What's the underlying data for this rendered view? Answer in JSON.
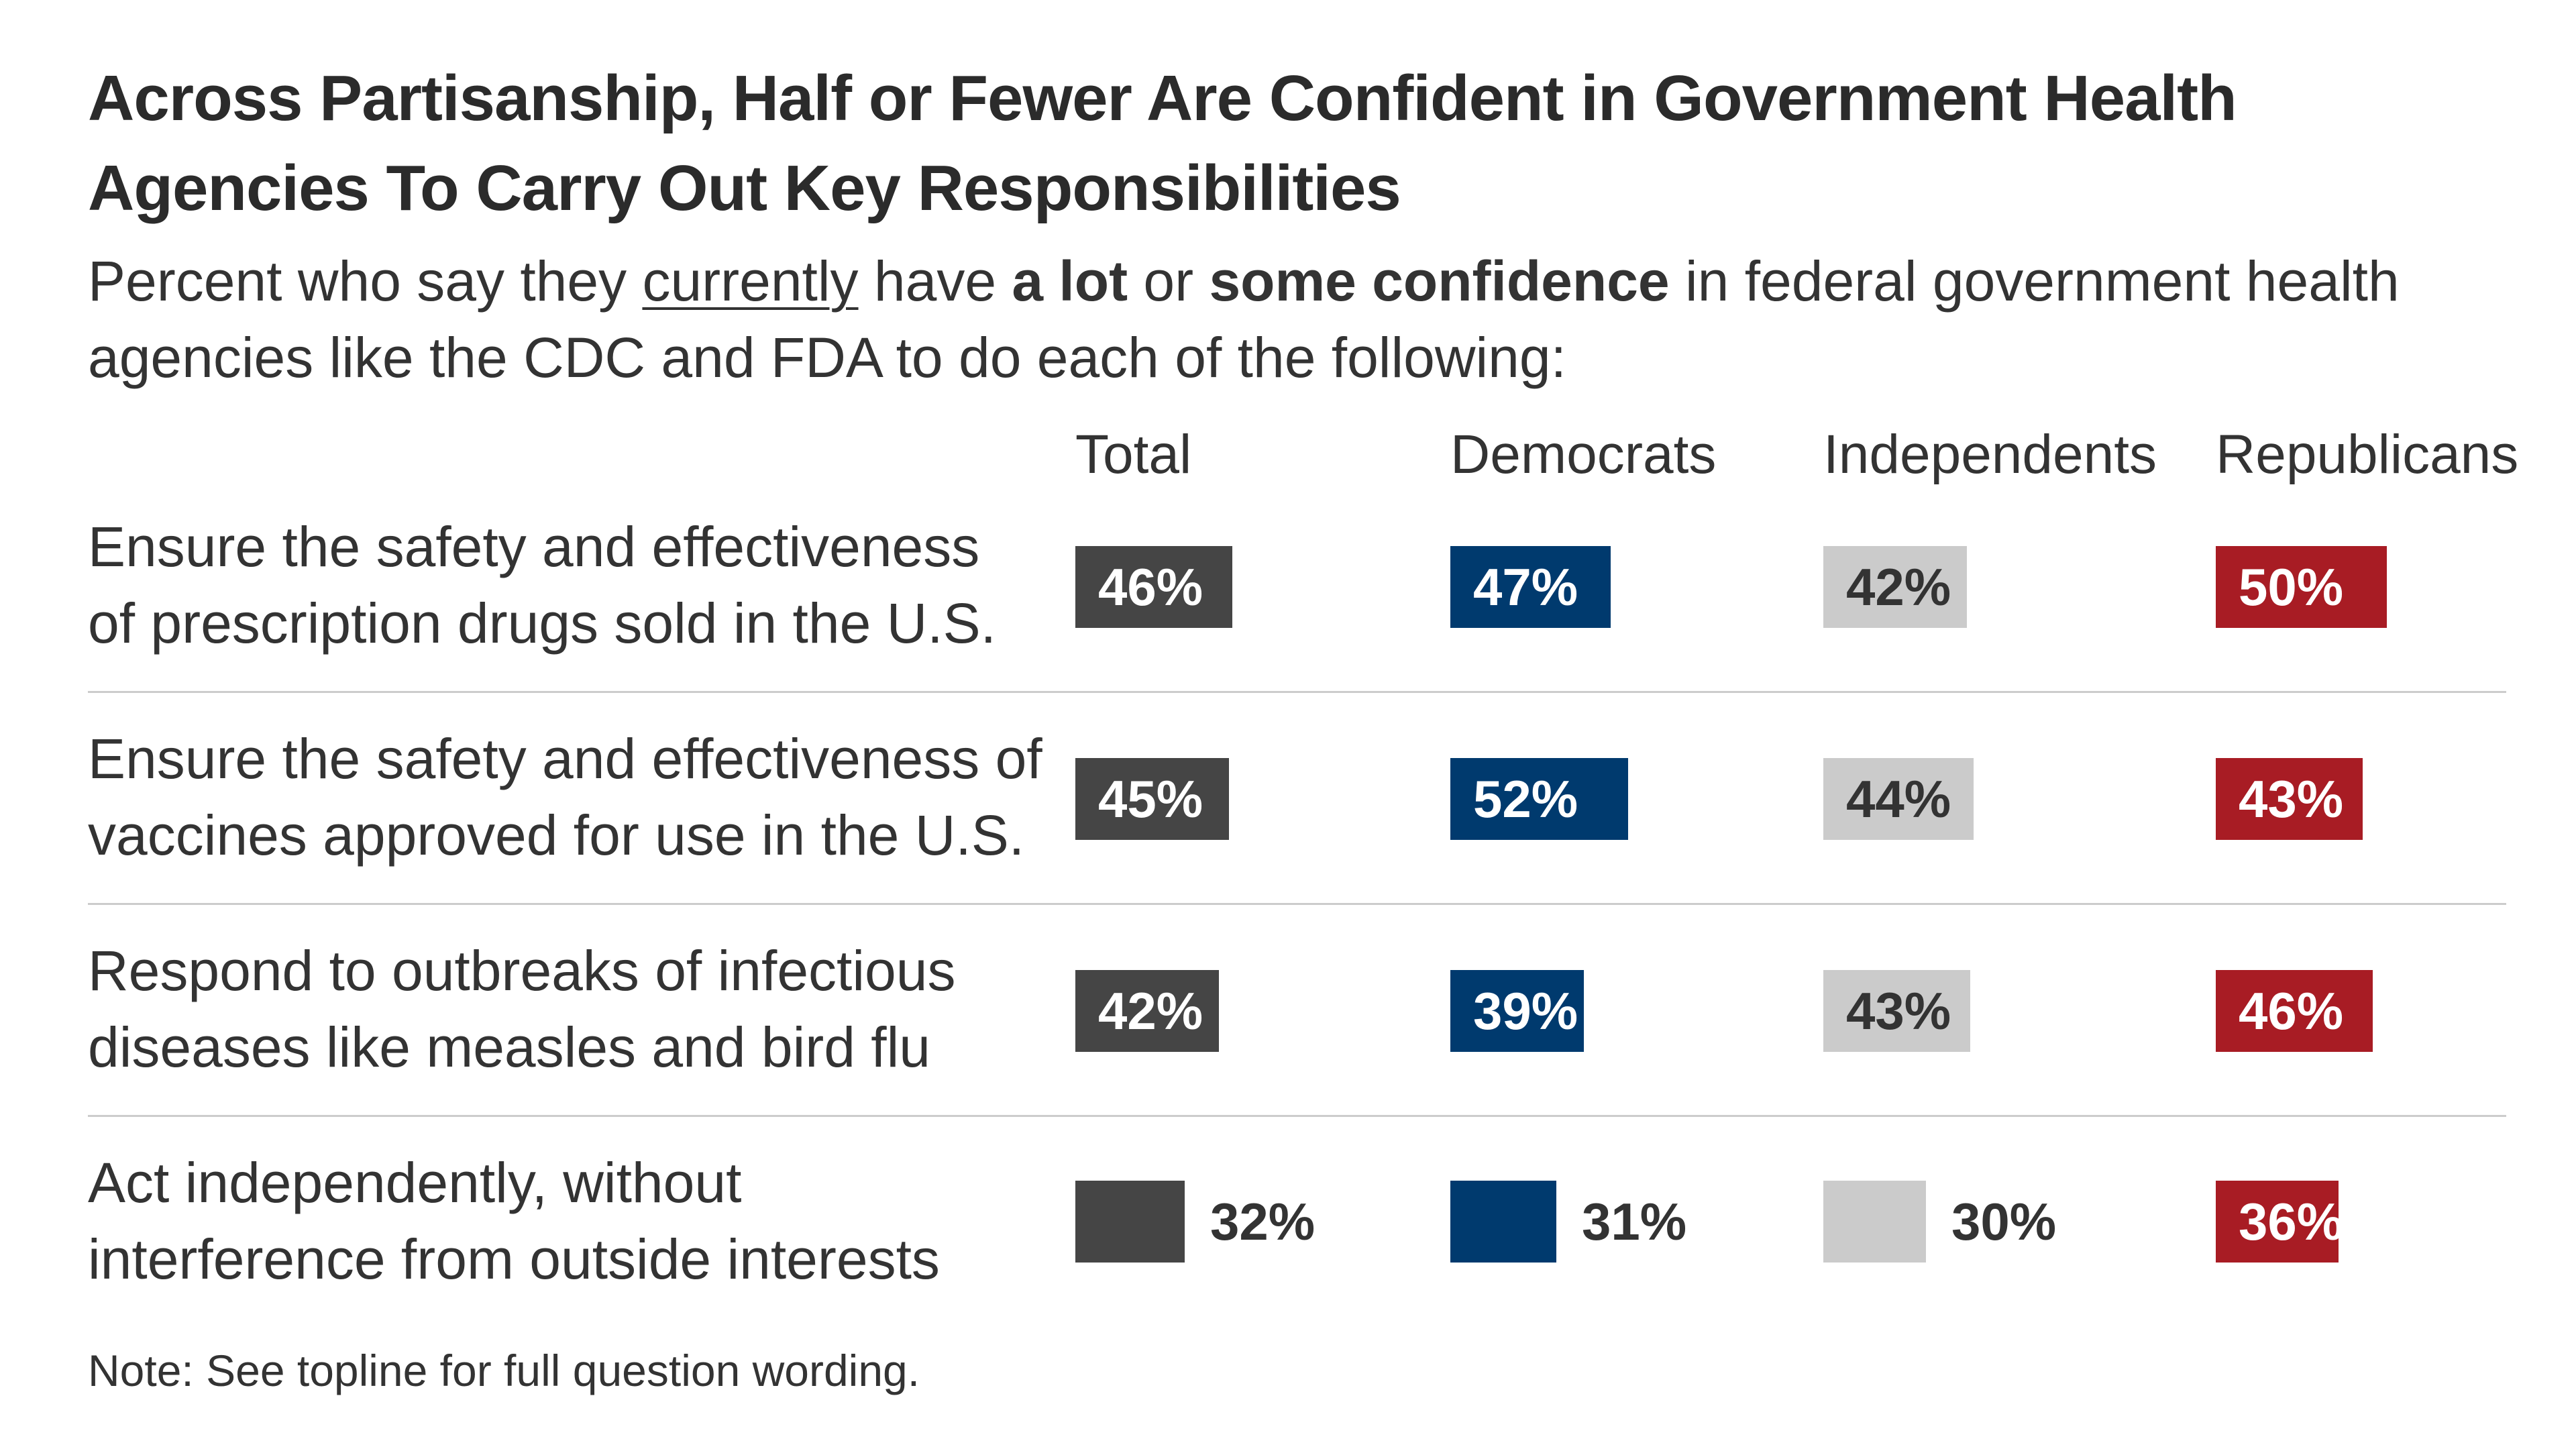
{
  "title_line1": "Across Partisanship, Half or Fewer Are Confident in Government Health",
  "title_line2": "Agencies To Carry Out Key Responsibilities",
  "subtitle": {
    "part1": "Percent who say they ",
    "underlined": "currently",
    "part2": " have ",
    "bold1": "a lot",
    "part3": " or ",
    "bold2": "some confidence",
    "part4": " in federal government health agencies like the CDC and FDA to do each of the following:"
  },
  "note": "Note: See topline for full question wording.",
  "colors": {
    "Total": "#454545",
    "Democrats": "#003a6e",
    "Independents": "#cbcbcb",
    "Republicans": "#a81c24",
    "text_dark": "#333333",
    "text_light": "#ffffff"
  },
  "chart_data": {
    "type": "bar",
    "orientation": "horizontal",
    "layout": "small-multiples",
    "categories": [
      "Ensure the safety and effectiveness of prescription drugs sold in the U.S.",
      "Ensure the safety and effectiveness of vaccines approved for use in the U.S.",
      "Respond to outbreaks of infectious diseases like measles and bird flu",
      "Act independently, without interference from outside interests"
    ],
    "category_lines": [
      [
        "Ensure the safety and effectiveness",
        "of prescription drugs sold in the U.S."
      ],
      [
        "Ensure the safety and effectiveness of",
        "vaccines approved for use in the U.S."
      ],
      [
        "Respond to outbreaks of infectious",
        "diseases like measles and bird flu"
      ],
      [
        "Act independently, without",
        "interference from outside interests"
      ]
    ],
    "series": [
      {
        "name": "Total",
        "values": [
          46,
          45,
          42,
          32
        ]
      },
      {
        "name": "Democrats",
        "values": [
          47,
          52,
          39,
          31
        ]
      },
      {
        "name": "Independents",
        "values": [
          42,
          44,
          43,
          30
        ]
      },
      {
        "name": "Republicans",
        "values": [
          50,
          43,
          46,
          36
        ]
      }
    ],
    "value_suffix": "%",
    "xlim": [
      0,
      100
    ],
    "grid": false,
    "legend": "column headers"
  }
}
